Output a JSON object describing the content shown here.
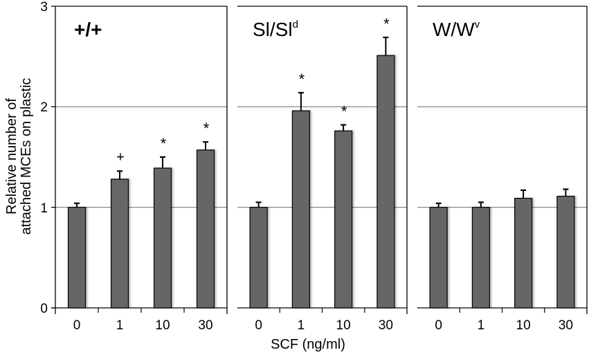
{
  "chart_data": {
    "type": "bar",
    "ylabel_lines": [
      "Relative number of",
      "attached MCEs on plastic"
    ],
    "xlabel": "SCF (ng/ml)",
    "ylim": [
      0,
      3
    ],
    "yticks": [
      0,
      1,
      2,
      3
    ],
    "ytick_labels": [
      "0",
      "1",
      "2",
      "3"
    ],
    "gridlines": [
      1,
      2
    ],
    "grid": true,
    "bar_color": "#666666",
    "categories": [
      "0",
      "1",
      "10",
      "30"
    ],
    "panels": [
      {
        "title": "+/+",
        "title_sup": "",
        "values": [
          1.0,
          1.28,
          1.39,
          1.57
        ],
        "errors": [
          0.04,
          0.08,
          0.11,
          0.08
        ],
        "annotations": [
          "",
          "+",
          "*",
          "*"
        ]
      },
      {
        "title": "Sl/Sl",
        "title_sup": "d",
        "values": [
          1.0,
          1.96,
          1.76,
          2.51
        ],
        "errors": [
          0.05,
          0.18,
          0.06,
          0.18
        ],
        "annotations": [
          "",
          "*",
          "*",
          "*"
        ]
      },
      {
        "title": "W/W",
        "title_sup": "v",
        "values": [
          1.0,
          1.0,
          1.09,
          1.11
        ],
        "errors": [
          0.04,
          0.05,
          0.08,
          0.07
        ],
        "annotations": [
          "",
          "",
          "",
          ""
        ]
      }
    ]
  }
}
